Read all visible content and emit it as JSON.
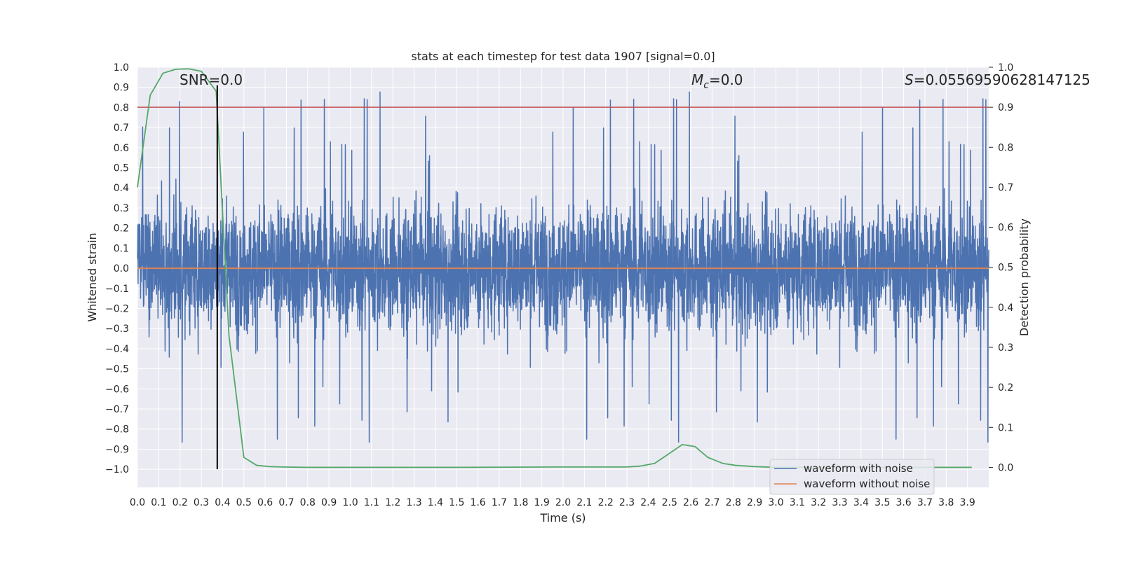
{
  "chart_data": {
    "type": "line",
    "title": "stats at each timestep for test data 1907 [signal=0.0]",
    "xlabel": "Time (s)",
    "ylabel": "Whitened strain",
    "y2label": "Detection probability",
    "xlim": [
      0.0,
      4.0
    ],
    "ylim": [
      -1.09,
      1.0
    ],
    "y2lim": [
      -0.05,
      1.0
    ],
    "xticks": [
      "0.0",
      "0.1",
      "0.2",
      "0.3",
      "0.4",
      "0.5",
      "0.6",
      "0.7",
      "0.8",
      "0.9",
      "1.0",
      "1.1",
      "1.2",
      "1.3",
      "1.4",
      "1.5",
      "1.6",
      "1.7",
      "1.8",
      "1.9",
      "2.0",
      "2.1",
      "2.2",
      "2.3",
      "2.4",
      "2.5",
      "2.6",
      "2.7",
      "2.8",
      "2.9",
      "3.0",
      "3.1",
      "3.2",
      "3.3",
      "3.4",
      "3.5",
      "3.6",
      "3.7",
      "3.8",
      "3.9"
    ],
    "yticks": [
      "1.0",
      "0.9",
      "0.8",
      "0.7",
      "0.6",
      "0.5",
      "0.4",
      "0.3",
      "0.2",
      "0.1",
      "0.0",
      "−0.1",
      "−0.2",
      "−0.3",
      "−0.4",
      "−0.5",
      "−0.6",
      "−0.7",
      "−0.8",
      "−0.9",
      "−1.0"
    ],
    "y2ticks": [
      "1.0",
      "0.9",
      "0.8",
      "0.7",
      "0.6",
      "0.5",
      "0.4",
      "0.3",
      "0.2",
      "0.1",
      "0.0"
    ],
    "annotations": {
      "snr": "SNR=0.0",
      "mc_symbol": "M",
      "mc_sub": "c",
      "mc_value": "=0.0",
      "s_symbol": "S",
      "s_value": "=0.05569590628147125"
    },
    "series": [
      {
        "name": "waveform with noise",
        "color": "#4c72b0",
        "samples": 4096,
        "range": [
          -1.0,
          0.91
        ]
      },
      {
        "name": "waveform without noise",
        "color": "#dd8452",
        "constant": 0.0
      },
      {
        "name": "detection probability",
        "color": "#55a868",
        "axis": "right",
        "x": [
          0.0,
          0.06,
          0.12,
          0.18,
          0.24,
          0.3,
          0.37,
          0.43,
          0.5,
          0.56,
          0.62,
          0.68,
          0.8,
          1.0,
          1.5,
          2.0,
          2.2,
          2.3,
          2.36,
          2.43,
          2.5,
          2.56,
          2.62,
          2.68,
          2.75,
          2.81,
          2.9,
          3.0,
          3.2,
          3.5,
          3.92
        ],
        "values": [
          0.7,
          0.93,
          0.985,
          0.995,
          0.996,
          0.99,
          0.94,
          0.33,
          0.025,
          0.005,
          0.002,
          0.001,
          0.0,
          0.0,
          0.0,
          0.001,
          0.001,
          0.001,
          0.003,
          0.01,
          0.035,
          0.057,
          0.052,
          0.025,
          0.01,
          0.005,
          0.002,
          0.0,
          0.0,
          0.0,
          0.0
        ]
      }
    ],
    "threshold": {
      "value": 0.9,
      "axis": "right",
      "color": "#c44e52"
    },
    "marker": {
      "x": 0.375,
      "color": "#000000"
    },
    "legend": {
      "position": "lower-right",
      "entries": [
        {
          "label": "waveform with noise",
          "color": "#4c72b0"
        },
        {
          "label": "waveform without noise",
          "color": "#dd8452"
        }
      ]
    },
    "style": {
      "background": "#eaeaf2",
      "grid": "#ffffff"
    }
  }
}
